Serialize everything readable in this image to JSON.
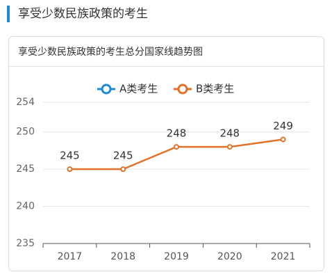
{
  "header": {
    "title": "享受少数民族政策的考生"
  },
  "chart_data": {
    "type": "line",
    "title": "享受少数民族政策的考生总分国家线趋势图",
    "categories": [
      "2017",
      "2018",
      "2019",
      "2020",
      "2021"
    ],
    "series": [
      {
        "name": "A类考生",
        "color": "#1b8ad8",
        "values": [
          null,
          null,
          null,
          null,
          null
        ]
      },
      {
        "name": "B类考生",
        "color": "#e0722a",
        "values": [
          245,
          245,
          248,
          248,
          249
        ]
      }
    ],
    "ylim": [
      235,
      254
    ],
    "yticks": [
      235,
      240,
      245,
      250,
      254
    ],
    "grid": true,
    "legend": "top"
  }
}
